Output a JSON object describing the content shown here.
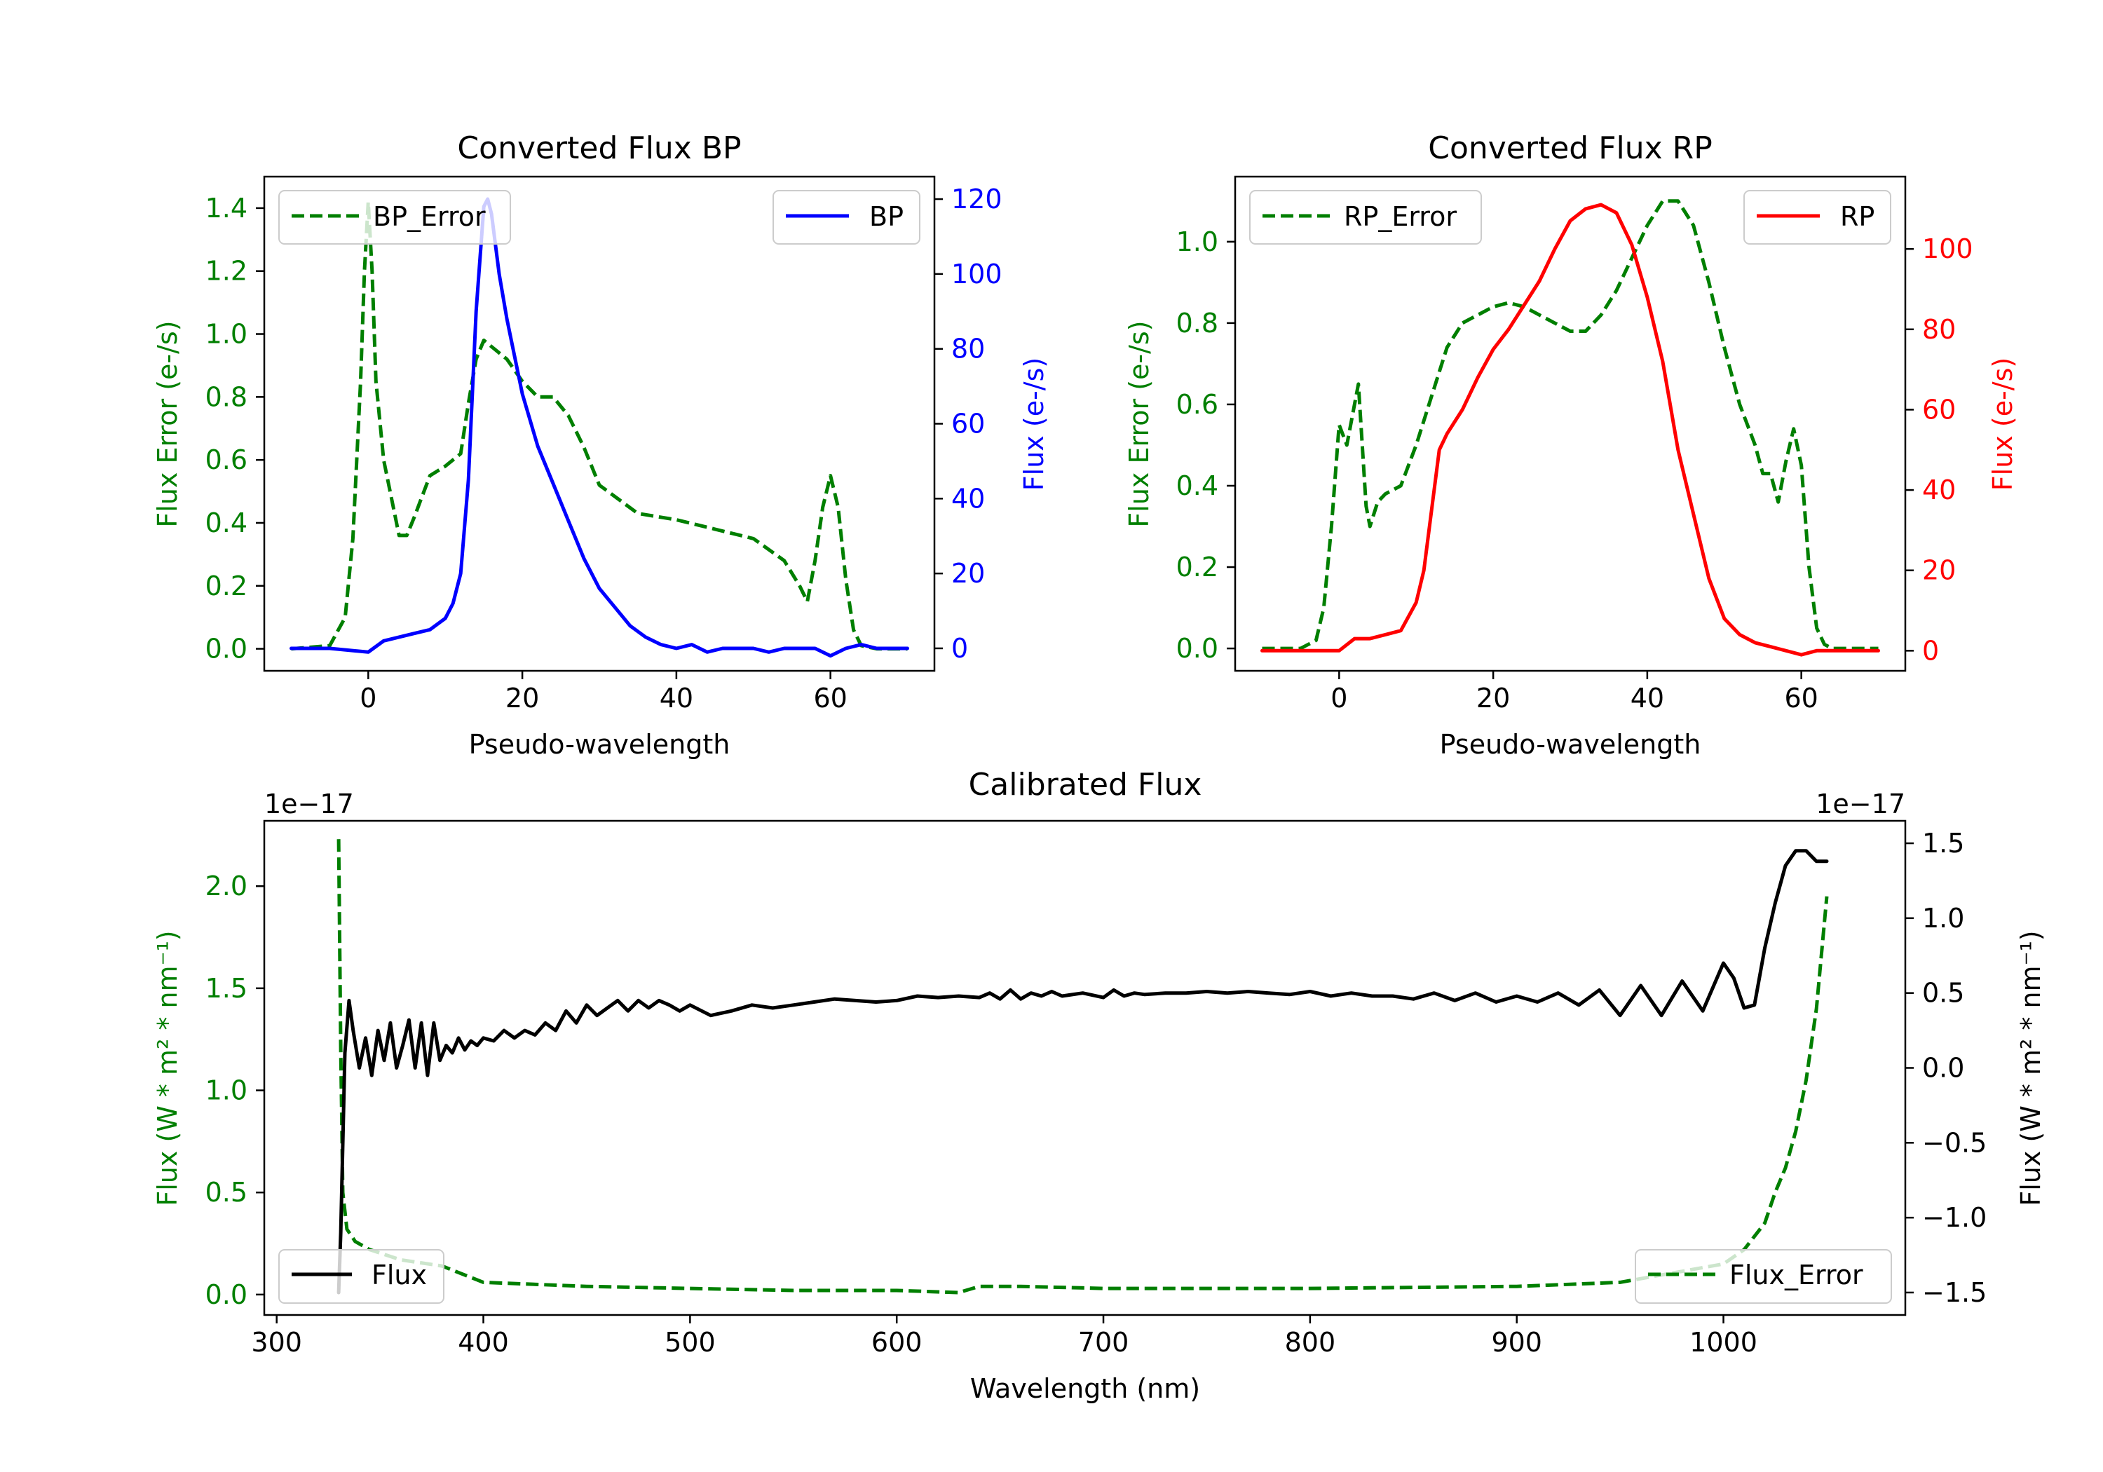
{
  "colors": {
    "bp": "#0000ff",
    "rp": "#ff0000",
    "error": "#007f00",
    "flux": "#000000",
    "axis": "#000000"
  },
  "chart_data": [
    {
      "id": "bp",
      "type": "line",
      "title": "Converted Flux BP",
      "xlabel": "Pseudo-wavelength",
      "ylabel_left": "Flux Error (e-/s)",
      "ylabel_right": "Flux (e-/s)",
      "xlim": [
        -13.5,
        73.5
      ],
      "ylim_left": [
        -0.07,
        1.5
      ],
      "ylim_right": [
        -6,
        126
      ],
      "xticks": [
        0,
        20,
        40,
        60
      ],
      "yticks_left": [
        "0.0",
        "0.2",
        "0.4",
        "0.6",
        "0.8",
        "1.0",
        "1.2",
        "1.4"
      ],
      "yticks_right": [
        "0",
        "20",
        "40",
        "60",
        "80",
        "100",
        "120"
      ],
      "legend_left": "BP_Error",
      "legend_right": "BP",
      "series": [
        {
          "name": "BP_Error",
          "axis": "left",
          "style": "dashed",
          "color": "#007f00",
          "x": [
            -10,
            -5,
            -3,
            -2,
            -1,
            -0.5,
            0,
            0.5,
            1,
            2,
            3,
            4,
            5,
            6,
            8,
            10,
            12,
            13,
            14,
            15,
            16,
            18,
            20,
            22,
            24,
            26,
            28,
            30,
            35,
            40,
            45,
            50,
            54,
            56,
            57,
            58,
            59,
            60,
            61,
            62,
            63,
            64,
            66,
            70
          ],
          "y": [
            0,
            0.01,
            0.1,
            0.35,
            0.85,
            1.2,
            1.42,
            1.2,
            0.85,
            0.6,
            0.48,
            0.36,
            0.36,
            0.42,
            0.55,
            0.58,
            0.62,
            0.78,
            0.92,
            0.98,
            0.96,
            0.92,
            0.85,
            0.8,
            0.8,
            0.74,
            0.64,
            0.52,
            0.43,
            0.41,
            0.38,
            0.35,
            0.28,
            0.2,
            0.15,
            0.28,
            0.45,
            0.55,
            0.45,
            0.22,
            0.06,
            0.01,
            0,
            0
          ]
        },
        {
          "name": "BP",
          "axis": "right",
          "style": "solid",
          "color": "#0000ff",
          "x": [
            -10,
            -5,
            0,
            2,
            4,
            6,
            8,
            10,
            11,
            12,
            13,
            14,
            15,
            15.5,
            16,
            17,
            18,
            20,
            22,
            24,
            26,
            28,
            30,
            32,
            34,
            36,
            38,
            40,
            42,
            44,
            46,
            48,
            50,
            52,
            54,
            56,
            58,
            60,
            62,
            64,
            66,
            70
          ],
          "y": [
            0,
            0,
            -1,
            2,
            3,
            4,
            5,
            8,
            12,
            20,
            45,
            90,
            118,
            120,
            116,
            100,
            88,
            68,
            54,
            44,
            34,
            24,
            16,
            11,
            6,
            3,
            1,
            0,
            1,
            -1,
            0,
            0,
            0,
            -1,
            0,
            0,
            0,
            -2,
            0,
            1,
            0,
            0
          ]
        }
      ]
    },
    {
      "id": "rp",
      "type": "line",
      "title": "Converted Flux RP",
      "xlabel": "Pseudo-wavelength",
      "ylabel_left": "Flux Error (e-/s)",
      "ylabel_right": "Flux (e-/s)",
      "xlim": [
        -13.5,
        73.5
      ],
      "ylim_left": [
        -0.055,
        1.16
      ],
      "ylim_right": [
        -5,
        118
      ],
      "xticks": [
        0,
        20,
        40,
        60
      ],
      "yticks_left": [
        "0.0",
        "0.2",
        "0.4",
        "0.6",
        "0.8",
        "1.0"
      ],
      "yticks_right": [
        "0",
        "20",
        "40",
        "60",
        "80",
        "100"
      ],
      "legend_left": "RP_Error",
      "legend_right": "RP",
      "series": [
        {
          "name": "RP_Error",
          "axis": "left",
          "style": "dashed",
          "color": "#007f00",
          "x": [
            -10,
            -5,
            -3,
            -2,
            -1,
            0,
            1,
            2,
            2.5,
            3,
            3.5,
            4,
            5,
            6,
            8,
            10,
            12,
            14,
            16,
            18,
            20,
            22,
            24,
            26,
            28,
            30,
            32,
            34,
            36,
            38,
            40,
            42,
            44,
            46,
            48,
            50,
            52,
            54,
            55,
            56,
            57,
            58,
            59,
            60,
            61,
            62,
            63,
            64,
            66,
            70
          ],
          "y": [
            0,
            0,
            0.02,
            0.1,
            0.3,
            0.55,
            0.5,
            0.6,
            0.65,
            0.5,
            0.35,
            0.3,
            0.36,
            0.38,
            0.4,
            0.5,
            0.62,
            0.74,
            0.8,
            0.82,
            0.84,
            0.85,
            0.84,
            0.82,
            0.8,
            0.78,
            0.78,
            0.82,
            0.88,
            0.96,
            1.04,
            1.1,
            1.1,
            1.04,
            0.9,
            0.74,
            0.6,
            0.5,
            0.43,
            0.43,
            0.36,
            0.46,
            0.54,
            0.45,
            0.2,
            0.05,
            0.01,
            0,
            0,
            0
          ]
        },
        {
          "name": "RP",
          "axis": "right",
          "style": "solid",
          "color": "#ff0000",
          "x": [
            -10,
            -5,
            0,
            2,
            4,
            6,
            8,
            10,
            11,
            12,
            13,
            14,
            16,
            18,
            20,
            22,
            24,
            26,
            28,
            30,
            32,
            34,
            36,
            38,
            40,
            42,
            44,
            46,
            48,
            50,
            52,
            54,
            56,
            58,
            60,
            62,
            66,
            70
          ],
          "y": [
            0,
            0,
            0,
            3,
            3,
            4,
            5,
            12,
            20,
            35,
            50,
            54,
            60,
            68,
            75,
            80,
            86,
            92,
            100,
            107,
            110,
            111,
            109,
            101,
            88,
            72,
            50,
            34,
            18,
            8,
            4,
            2,
            1,
            0,
            -1,
            0,
            0,
            0
          ]
        }
      ]
    },
    {
      "id": "calibrated",
      "type": "line",
      "title": "Calibrated Flux",
      "xlabel": "Wavelength (nm)",
      "ylabel_left": "Flux (W * m² * nm⁻¹)",
      "ylabel_right": "Flux (W * m² * nm⁻¹)",
      "offset_left": "1e−17",
      "offset_right": "1e−17",
      "xlim": [
        294,
        1088
      ],
      "ylim_left": [
        -0.1,
        2.32
      ],
      "ylim_right": [
        -1.65,
        1.65
      ],
      "xticks": [
        300,
        400,
        500,
        600,
        700,
        800,
        900,
        1000
      ],
      "yticks_left": [
        "0.0",
        "0.5",
        "1.0",
        "1.5",
        "2.0"
      ],
      "yticks_right": [
        "−1.5",
        "−1.0",
        "−0.5",
        "0.0",
        "0.5",
        "1.0",
        "1.5"
      ],
      "legend_left": "Flux",
      "legend_right": "Flux_Error",
      "series": [
        {
          "name": "Flux_Error",
          "axis": "left",
          "style": "dashed",
          "color": "#007f00",
          "x": [
            330,
            331,
            332,
            334,
            338,
            345,
            360,
            380,
            400,
            450,
            500,
            550,
            600,
            630,
            640,
            660,
            700,
            800,
            900,
            950,
            1000,
            1010,
            1020,
            1025,
            1030,
            1035,
            1040,
            1045,
            1050
          ],
          "y": [
            2.23,
            1.2,
            0.5,
            0.32,
            0.26,
            0.22,
            0.17,
            0.14,
            0.06,
            0.04,
            0.03,
            0.02,
            0.02,
            0.01,
            0.04,
            0.04,
            0.03,
            0.03,
            0.04,
            0.06,
            0.15,
            0.22,
            0.35,
            0.5,
            0.62,
            0.8,
            1.05,
            1.4,
            1.95
          ]
        },
        {
          "name": "Flux",
          "axis": "right",
          "style": "solid",
          "color": "#000000",
          "x": [
            330,
            331,
            333,
            335,
            337,
            340,
            343,
            346,
            349,
            352,
            355,
            358,
            361,
            364,
            367,
            370,
            373,
            376,
            379,
            382,
            385,
            388,
            391,
            394,
            397,
            400,
            405,
            410,
            415,
            420,
            425,
            430,
            435,
            440,
            445,
            450,
            455,
            460,
            465,
            470,
            475,
            480,
            485,
            490,
            495,
            500,
            510,
            520,
            530,
            540,
            550,
            560,
            570,
            580,
            590,
            600,
            610,
            620,
            630,
            640,
            645,
            650,
            655,
            660,
            665,
            670,
            675,
            680,
            690,
            700,
            705,
            710,
            715,
            720,
            730,
            740,
            750,
            760,
            770,
            780,
            790,
            800,
            810,
            820,
            830,
            840,
            850,
            860,
            870,
            880,
            890,
            900,
            910,
            920,
            930,
            940,
            950,
            960,
            970,
            980,
            990,
            1000,
            1005,
            1010,
            1015,
            1020,
            1025,
            1030,
            1035,
            1040,
            1045,
            1050
          ],
          "y": [
            -1.5,
            -1.1,
            0.1,
            0.45,
            0.25,
            0.0,
            0.2,
            -0.05,
            0.25,
            0.05,
            0.3,
            0.0,
            0.15,
            0.32,
            0.0,
            0.3,
            -0.05,
            0.3,
            0.05,
            0.15,
            0.1,
            0.2,
            0.12,
            0.18,
            0.15,
            0.2,
            0.18,
            0.25,
            0.2,
            0.25,
            0.22,
            0.3,
            0.25,
            0.38,
            0.3,
            0.42,
            0.35,
            0.4,
            0.45,
            0.38,
            0.45,
            0.4,
            0.45,
            0.42,
            0.38,
            0.42,
            0.35,
            0.38,
            0.42,
            0.4,
            0.42,
            0.44,
            0.46,
            0.45,
            0.44,
            0.45,
            0.48,
            0.47,
            0.48,
            0.47,
            0.5,
            0.46,
            0.52,
            0.46,
            0.5,
            0.48,
            0.51,
            0.48,
            0.5,
            0.47,
            0.52,
            0.48,
            0.5,
            0.49,
            0.5,
            0.5,
            0.51,
            0.5,
            0.51,
            0.5,
            0.49,
            0.51,
            0.48,
            0.5,
            0.48,
            0.48,
            0.46,
            0.5,
            0.45,
            0.5,
            0.44,
            0.48,
            0.44,
            0.5,
            0.42,
            0.52,
            0.35,
            0.55,
            0.35,
            0.58,
            0.38,
            0.7,
            0.6,
            0.4,
            0.42,
            0.8,
            1.1,
            1.35,
            1.45,
            1.45,
            1.38,
            1.38
          ]
        }
      ]
    }
  ]
}
